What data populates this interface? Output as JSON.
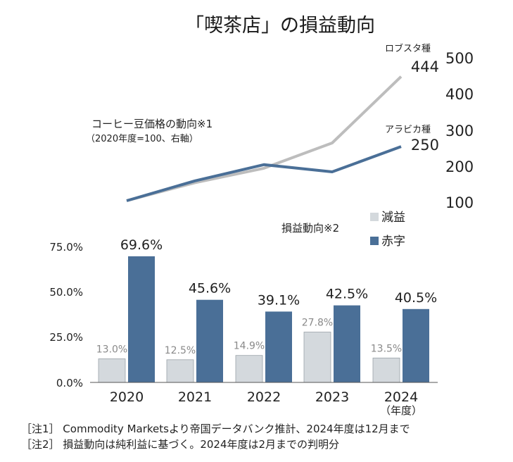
{
  "title": "「喫茶店」の損益動向",
  "price_block": {
    "label": "コーヒー豆価格の動向※1",
    "sublabel": "（2020年度=100、右軸）",
    "series": [
      {
        "name": "ロブスタ種",
        "end_value_label": "444",
        "color": "#bdbdbd"
      },
      {
        "name": "アラビカ種",
        "end_value_label": "250",
        "color": "#4a6f97"
      }
    ],
    "right_ticks": [
      "500",
      "400",
      "300",
      "200",
      "100"
    ]
  },
  "profit_block": {
    "label": "損益動向※2",
    "legend": [
      {
        "name": "減益",
        "color": "#d4d9dd"
      },
      {
        "name": "赤字",
        "color": "#4a6f97"
      }
    ],
    "left_ticks": [
      "75.0%",
      "50.0%",
      "25.0%",
      "0.0%"
    ]
  },
  "categories": [
    "2020",
    "2021",
    "2022",
    "2023",
    "2024"
  ],
  "x_sublabel": "（年度）",
  "notes": [
    "［注1］ Commodity Marketsより帝国データバンク推計、2024年度は12月まで",
    "［注2］ 損益動向は純利益に基づく。2024年度は2月までの判明分"
  ],
  "chart_data": [
    {
      "type": "line",
      "title": "",
      "x": [
        "2020",
        "2021",
        "2022",
        "2023",
        "2024"
      ],
      "ylabel": "2020年度=100、右軸",
      "ylim": [
        100,
        500
      ],
      "series": [
        {
          "name": "ロブスタ種",
          "values": [
            100,
            150,
            190,
            260,
            444
          ]
        },
        {
          "name": "アラビカ種",
          "values": [
            100,
            155,
            200,
            180,
            250
          ]
        }
      ]
    },
    {
      "type": "bar",
      "title": "",
      "categories": [
        "2020",
        "2021",
        "2022",
        "2023",
        "2024"
      ],
      "ylim": [
        0,
        75
      ],
      "series": [
        {
          "name": "減益",
          "values": [
            13.0,
            12.5,
            14.9,
            27.8,
            13.5
          ],
          "labels": [
            "13.0%",
            "12.5%",
            "14.9%",
            "27.8%",
            "13.5%"
          ]
        },
        {
          "name": "赤字",
          "values": [
            69.6,
            45.6,
            39.1,
            42.5,
            40.5
          ],
          "labels": [
            "69.6%",
            "45.6%",
            "39.1%",
            "42.5%",
            "40.5%"
          ]
        }
      ]
    }
  ]
}
